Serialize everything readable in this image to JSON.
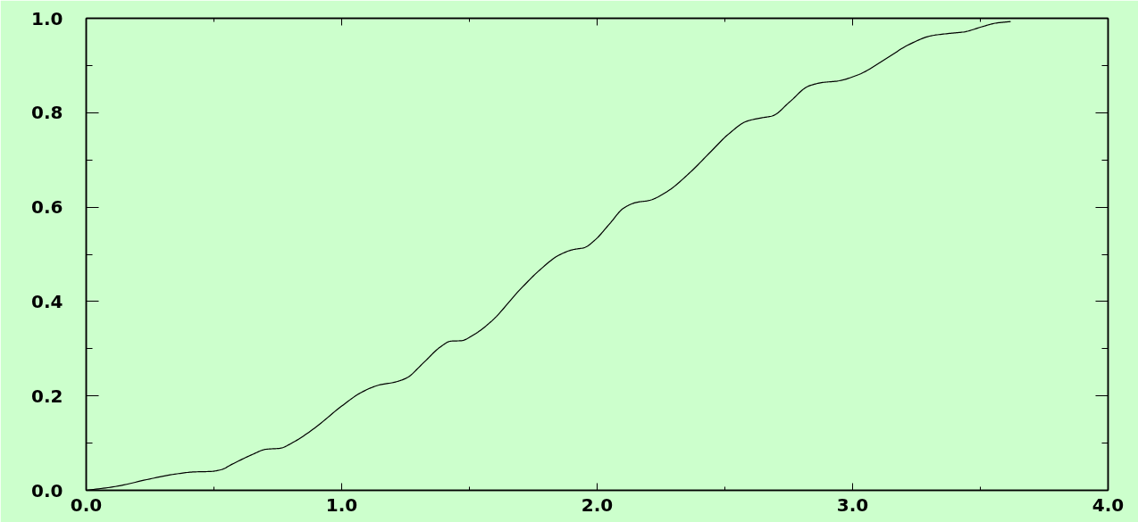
{
  "chart_data": {
    "type": "line",
    "x": [
      0,
      0.114,
      0.248,
      0.356,
      0.423,
      0.489,
      0.53,
      0.57,
      0.651,
      0.704,
      0.758,
      0.811,
      0.892,
      0.999,
      1.079,
      1.146,
      1.207,
      1.254,
      1.32,
      1.387,
      1.427,
      1.468,
      1.521,
      1.588,
      1.696,
      1.776,
      1.85,
      1.906,
      1.949,
      1.991,
      2.048,
      2.104,
      2.154,
      2.203,
      2.274,
      2.359,
      2.444,
      2.515,
      2.586,
      2.643,
      2.685,
      2.756,
      2.826,
      2.883,
      2.94,
      3.025,
      3.124,
      3.223,
      3.308,
      3.379,
      3.435,
      3.506,
      3.563,
      3.617
    ],
    "series": [
      {
        "color": "#000000",
        "values": [
          0,
          0.008,
          0.024,
          0.035,
          0.039,
          0.04,
          0.044,
          0.055,
          0.076,
          0.087,
          0.089,
          0.102,
          0.131,
          0.178,
          0.208,
          0.223,
          0.229,
          0.238,
          0.27,
          0.304,
          0.316,
          0.317,
          0.331,
          0.359,
          0.424,
          0.467,
          0.498,
          0.51,
          0.514,
          0.53,
          0.564,
          0.598,
          0.61,
          0.614,
          0.633,
          0.671,
          0.717,
          0.755,
          0.782,
          0.789,
          0.793,
          0.824,
          0.856,
          0.864,
          0.867,
          0.881,
          0.912,
          0.945,
          0.963,
          0.968,
          0.971,
          0.982,
          0.99,
          0.993
        ]
      }
    ],
    "xlim": [
      0,
      4
    ],
    "ylim": [
      0,
      1
    ],
    "xticks": [
      {
        "value": 0,
        "label": "0.0"
      },
      {
        "value": 0.5,
        "label": null
      },
      {
        "value": 1,
        "label": "1.0"
      },
      {
        "value": 1.5,
        "label": null
      },
      {
        "value": 2,
        "label": "2.0"
      },
      {
        "value": 2.5,
        "label": null
      },
      {
        "value": 3,
        "label": "3.0"
      },
      {
        "value": 3.5,
        "label": null
      },
      {
        "value": 4,
        "label": "4.0"
      }
    ],
    "yticks": [
      {
        "value": 0,
        "label": "0.0"
      },
      {
        "value": 0.1,
        "label": null
      },
      {
        "value": 0.2,
        "label": "0.2"
      },
      {
        "value": 0.3,
        "label": null
      },
      {
        "value": 0.4,
        "label": "0.4"
      },
      {
        "value": 0.5,
        "label": null
      },
      {
        "value": 0.6,
        "label": "0.6"
      },
      {
        "value": 0.7,
        "label": null
      },
      {
        "value": 0.8,
        "label": "0.8"
      },
      {
        "value": 0.9,
        "label": null
      },
      {
        "value": 1,
        "label": "1.0"
      }
    ]
  }
}
